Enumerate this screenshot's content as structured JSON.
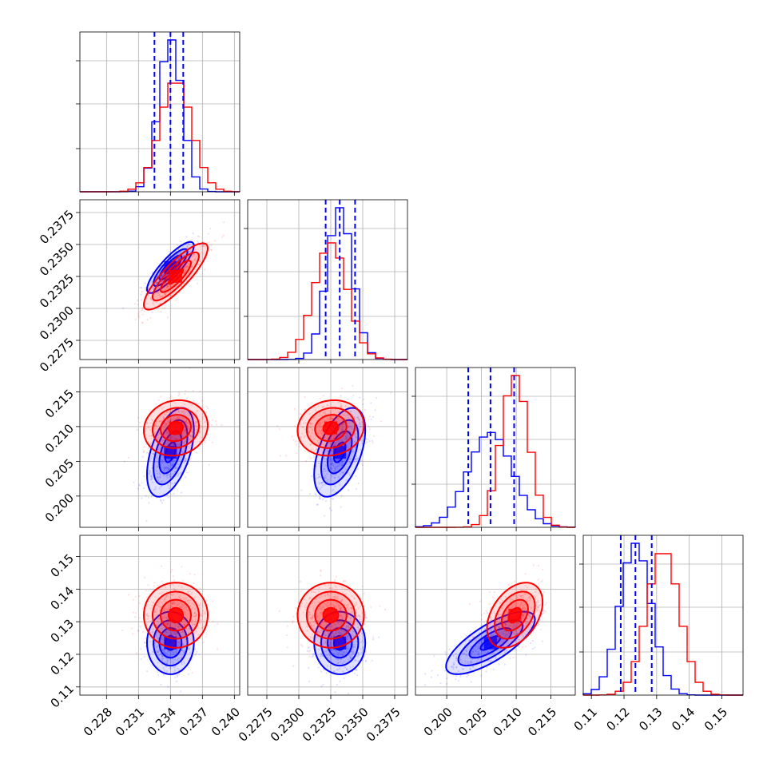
{
  "chart_data": {
    "type": "corner",
    "colors": {
      "blue": "#0000ff",
      "red": "#ff0000"
    },
    "series": [
      {
        "name": "",
        "color": "#0000ff",
        "mean": [
          0.234,
          0.2332,
          0.2063,
          0.1235
        ],
        "sd": [
          0.0011,
          0.001,
          0.0032,
          0.0048
        ],
        "correlations": [
          [
            0,
            1,
            0.85
          ],
          [
            0,
            2,
            0.5
          ],
          [
            1,
            2,
            0.5
          ],
          [
            2,
            3,
            0.75
          ]
        ],
        "quantiles": [
          [
            0.2325,
            0.234,
            0.2352
          ],
          [
            0.2321,
            0.2332,
            0.2344
          ],
          [
            0.2031,
            0.2063,
            0.2097
          ],
          [
            0.119,
            0.1235,
            0.1285
          ]
        ]
      },
      {
        "name": "",
        "color": "#ff0000",
        "mean": [
          0.2345,
          0.2325,
          0.2098,
          0.132
        ],
        "sd": [
          0.0015,
          0.0013,
          0.002,
          0.005
        ],
        "correlations": [
          [
            0,
            1,
            0.85
          ],
          [
            0,
            2,
            0.1
          ],
          [
            1,
            2,
            0.1
          ],
          [
            2,
            3,
            0.4
          ]
        ],
        "quantiles": null
      }
    ],
    "params": [
      {
        "range": [
          0.2255,
          0.2405
        ],
        "ticks": [
          "0.228",
          "0.231",
          "0.234",
          "0.237",
          "0.240"
        ]
      },
      {
        "range": [
          0.226,
          0.2385
        ],
        "ticks": [
          "0.2275",
          "0.2300",
          "0.2325",
          "0.2350",
          "0.2375"
        ]
      },
      {
        "range": [
          0.1955,
          0.2185
        ],
        "ticks": [
          "0.200",
          "0.205",
          "0.210",
          "0.215"
        ]
      },
      {
        "range": [
          0.1075,
          0.1565
        ],
        "ticks": [
          "0.11",
          "0.12",
          "0.13",
          "0.14",
          "0.15"
        ]
      }
    ],
    "tick_values": [
      [
        0.228,
        0.231,
        0.234,
        0.237,
        0.24
      ],
      [
        0.2275,
        0.23,
        0.2325,
        0.235,
        0.2375
      ],
      [
        0.2,
        0.205,
        0.21,
        0.215
      ],
      [
        0.11,
        0.12,
        0.13,
        0.14,
        0.15
      ]
    ],
    "grid": true,
    "quantile_line_style": "dashed"
  }
}
